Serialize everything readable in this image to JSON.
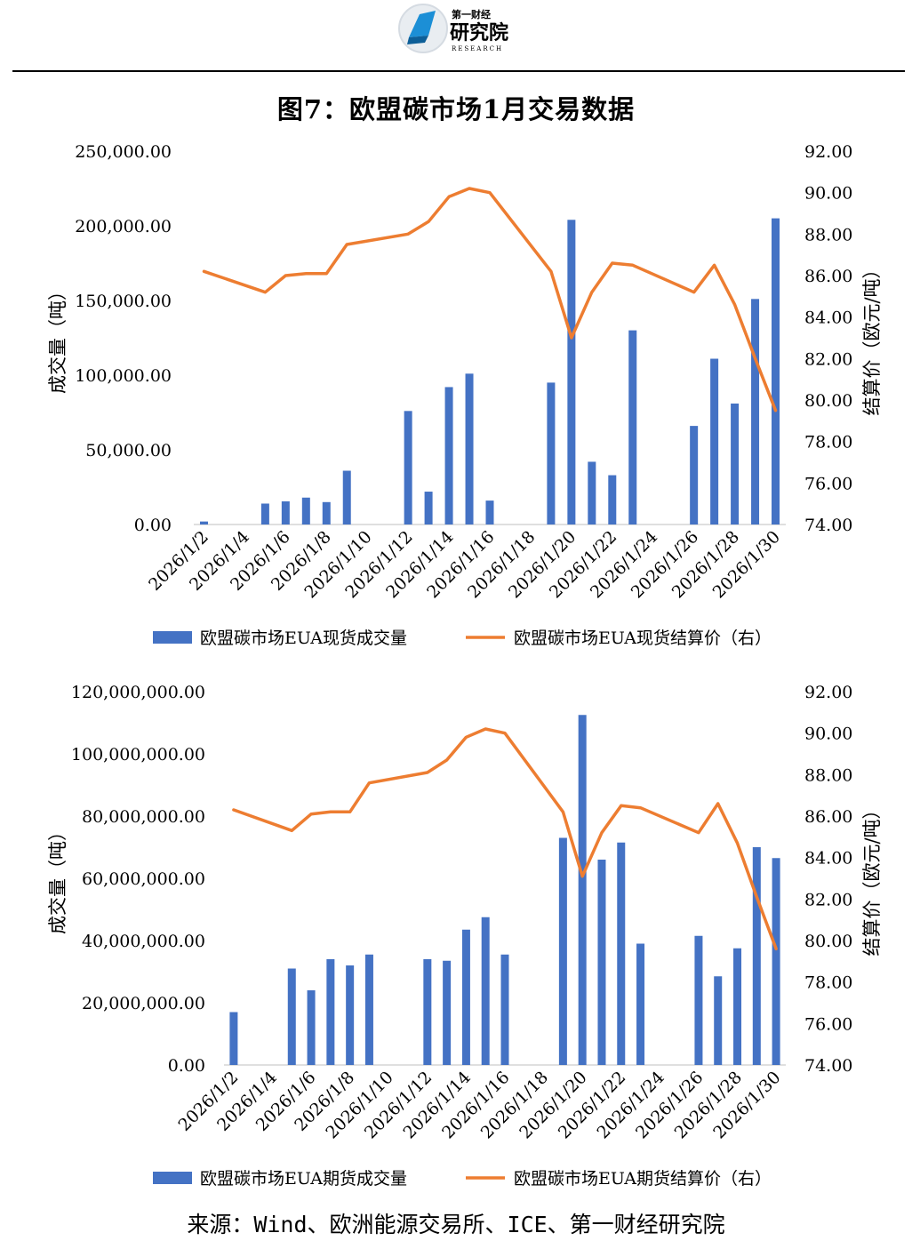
{
  "header": {
    "logo_text_top": "第一财经",
    "logo_text_main": "研究院",
    "logo_text_sub": "RESEARCH"
  },
  "title": "图7：欧盟碳市场1月交易数据",
  "source": "来源：Wind、欧洲能源交易所、ICE、第一财经研究院",
  "colors": {
    "bar": "#4472C4",
    "line": "#ED7D31"
  },
  "chart_data": [
    {
      "type": "bar",
      "xlabels": [
        "2026/1/2",
        "2026/1/4",
        "2026/1/6",
        "2026/1/8",
        "2026/1/10",
        "2026/1/12",
        "2026/1/14",
        "2026/1/16",
        "2026/1/18",
        "2026/1/20",
        "2026/1/22",
        "2026/1/24",
        "2026/1/26",
        "2026/1/28",
        "2026/1/30"
      ],
      "left_axis": {
        "label": "成交量（吨）",
        "ticks": [
          "0.00",
          "50,000.00",
          "100,000.00",
          "150,000.00",
          "200,000.00",
          "250,000.00"
        ],
        "range": [
          0,
          250000
        ]
      },
      "right_axis": {
        "label": "结算价（欧元/吨）",
        "ticks": [
          "74.00",
          "76.00",
          "78.00",
          "80.00",
          "82.00",
          "84.00",
          "86.00",
          "88.00",
          "90.00",
          "92.00"
        ],
        "range": [
          74,
          92
        ]
      },
      "bar_series": {
        "name": "欧盟碳市场EUA现货成交量",
        "days": [
          2,
          5,
          6,
          7,
          8,
          9,
          12,
          13,
          14,
          15,
          16,
          19,
          20,
          21,
          22,
          23,
          26,
          27,
          28,
          29,
          30
        ],
        "values": [
          2000,
          14000,
          15500,
          18000,
          15000,
          36000,
          76000,
          22000,
          92000,
          101000,
          16000,
          95000,
          204000,
          42000,
          33000,
          130000,
          66000,
          111000,
          81000,
          151000,
          205000
        ]
      },
      "line_series": {
        "name": "欧盟碳市场EUA现货结算价（右）",
        "days": [
          2,
          5,
          6,
          7,
          8,
          9,
          12,
          13,
          14,
          15,
          16,
          19,
          20,
          21,
          22,
          23,
          26,
          27,
          28,
          29,
          30
        ],
        "values": [
          86.2,
          85.2,
          86.0,
          86.1,
          86.1,
          87.5,
          88.0,
          88.6,
          89.8,
          90.2,
          90.0,
          86.2,
          83.0,
          85.2,
          86.6,
          86.5,
          85.2,
          86.5,
          84.6,
          82.0,
          79.5
        ]
      }
    },
    {
      "type": "bar",
      "xlabels": [
        "2026/1/2",
        "2026/1/4",
        "2026/1/6",
        "2026/1/8",
        "2026/1/10",
        "2026/1/12",
        "2026/1/14",
        "2026/1/16",
        "2026/1/18",
        "2026/1/20",
        "2026/1/22",
        "2026/1/24",
        "2026/1/26",
        "2026/1/28",
        "2026/1/30"
      ],
      "left_axis": {
        "label": "成交量（吨）",
        "ticks": [
          "0.00",
          "20,000,000.00",
          "40,000,000.00",
          "60,000,000.00",
          "80,000,000.00",
          "100,000,000.00",
          "120,000,000.00"
        ],
        "range": [
          0,
          120000000
        ]
      },
      "right_axis": {
        "label": "结算价（欧元/吨）",
        "ticks": [
          "74.00",
          "76.00",
          "78.00",
          "80.00",
          "82.00",
          "84.00",
          "86.00",
          "88.00",
          "90.00",
          "92.00"
        ],
        "range": [
          74,
          92
        ]
      },
      "bar_series": {
        "name": "欧盟碳市场EUA期货成交量",
        "days": [
          2,
          5,
          6,
          7,
          8,
          9,
          12,
          13,
          14,
          15,
          16,
          19,
          20,
          21,
          22,
          23,
          26,
          27,
          28,
          29,
          30
        ],
        "values": [
          17000000,
          31000000,
          24000000,
          34000000,
          32000000,
          35500000,
          34000000,
          33500000,
          43500000,
          47500000,
          35500000,
          73000000,
          112500000,
          66000000,
          71500000,
          39000000,
          41500000,
          28500000,
          37500000,
          70000000,
          66500000
        ]
      },
      "line_series": {
        "name": "欧盟碳市场EUA期货结算价（右）",
        "days": [
          2,
          5,
          6,
          7,
          8,
          9,
          12,
          13,
          14,
          15,
          16,
          19,
          20,
          21,
          22,
          23,
          26,
          27,
          28,
          29,
          30
        ],
        "values": [
          86.3,
          85.3,
          86.1,
          86.2,
          86.2,
          87.6,
          88.1,
          88.7,
          89.8,
          90.2,
          90.0,
          86.2,
          83.1,
          85.2,
          86.5,
          86.4,
          85.2,
          86.6,
          84.7,
          82.1,
          79.6
        ]
      }
    }
  ]
}
